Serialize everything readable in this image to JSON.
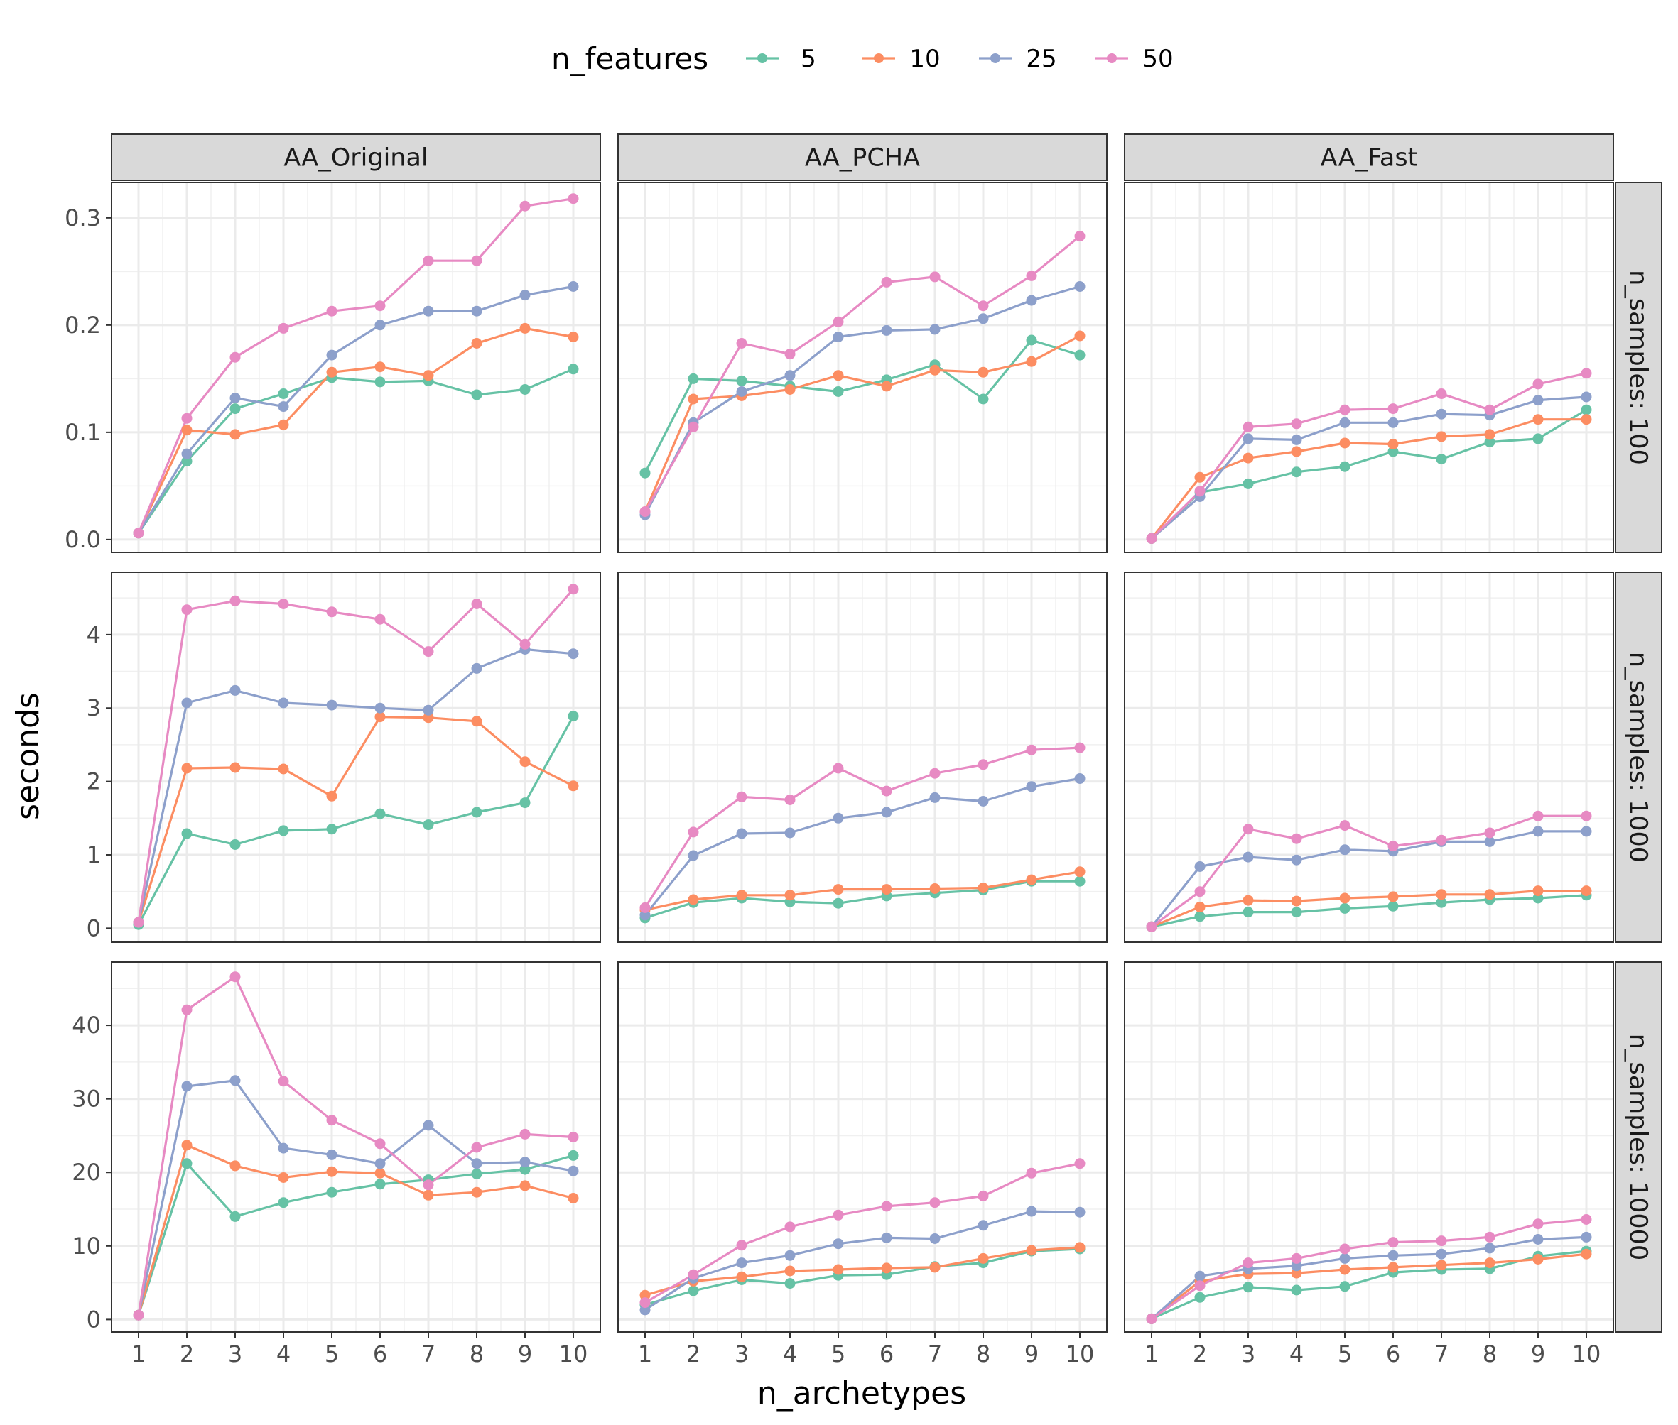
{
  "chart_data": {
    "type": "line",
    "layout": "facet_grid",
    "xlabel": "n_archetypes",
    "ylabel": "seconds",
    "x": [
      1,
      2,
      3,
      4,
      5,
      6,
      7,
      8,
      9,
      10
    ],
    "x_ticks": [
      "1",
      "2",
      "3",
      "4",
      "5",
      "6",
      "7",
      "8",
      "9",
      "10"
    ],
    "legend": {
      "title": "n_features",
      "position": "top",
      "entries": [
        {
          "name": "5",
          "color": "#66c2a5"
        },
        {
          "name": "10",
          "color": "#fc8d62"
        },
        {
          "name": "25",
          "color": "#8da0cb"
        },
        {
          "name": "50",
          "color": "#e78ac3"
        }
      ]
    },
    "columns": [
      "AA_Original",
      "AA_PCHA",
      "AA_Fast"
    ],
    "rows": [
      {
        "label": "n_samples: 100",
        "ylim": [
          -0.012,
          0.333
        ],
        "y_ticks": [
          0.0,
          0.1,
          0.2,
          0.3
        ],
        "y_tick_labels": [
          "0.0",
          "0.1",
          "0.2",
          "0.3"
        ],
        "panels": [
          {
            "series": [
              {
                "name": "5",
                "values": [
                  0.006,
                  0.073,
                  0.122,
                  0.136,
                  0.151,
                  0.147,
                  0.148,
                  0.135,
                  0.14,
                  0.159
                ]
              },
              {
                "name": "10",
                "values": [
                  0.006,
                  0.102,
                  0.098,
                  0.107,
                  0.156,
                  0.161,
                  0.153,
                  0.183,
                  0.197,
                  0.189
                ]
              },
              {
                "name": "25",
                "values": [
                  0.006,
                  0.08,
                  0.132,
                  0.124,
                  0.172,
                  0.2,
                  0.213,
                  0.213,
                  0.228,
                  0.236
                ]
              },
              {
                "name": "50",
                "values": [
                  0.006,
                  0.113,
                  0.17,
                  0.197,
                  0.213,
                  0.218,
                  0.26,
                  0.26,
                  0.311,
                  0.318
                ]
              }
            ]
          },
          {
            "series": [
              {
                "name": "5",
                "values": [
                  0.062,
                  0.15,
                  0.148,
                  0.143,
                  0.138,
                  0.149,
                  0.163,
                  0.131,
                  0.186,
                  0.172
                ]
              },
              {
                "name": "10",
                "values": [
                  0.026,
                  0.131,
                  0.134,
                  0.14,
                  0.153,
                  0.143,
                  0.158,
                  0.156,
                  0.166,
                  0.19
                ]
              },
              {
                "name": "25",
                "values": [
                  0.023,
                  0.109,
                  0.138,
                  0.153,
                  0.189,
                  0.195,
                  0.196,
                  0.206,
                  0.223,
                  0.236
                ]
              },
              {
                "name": "50",
                "values": [
                  0.026,
                  0.105,
                  0.183,
                  0.173,
                  0.203,
                  0.24,
                  0.245,
                  0.218,
                  0.246,
                  0.283
                ]
              }
            ]
          },
          {
            "series": [
              {
                "name": "5",
                "values": [
                  0.001,
                  0.044,
                  0.052,
                  0.063,
                  0.068,
                  0.082,
                  0.075,
                  0.091,
                  0.094,
                  0.121
                ]
              },
              {
                "name": "10",
                "values": [
                  0.001,
                  0.058,
                  0.076,
                  0.082,
                  0.09,
                  0.089,
                  0.096,
                  0.098,
                  0.112,
                  0.112
                ]
              },
              {
                "name": "25",
                "values": [
                  0.001,
                  0.04,
                  0.094,
                  0.093,
                  0.109,
                  0.109,
                  0.117,
                  0.116,
                  0.13,
                  0.133
                ]
              },
              {
                "name": "50",
                "values": [
                  0.001,
                  0.045,
                  0.105,
                  0.108,
                  0.121,
                  0.122,
                  0.136,
                  0.121,
                  0.145,
                  0.155
                ]
              }
            ]
          }
        ]
      },
      {
        "label": "n_samples: 1000",
        "ylim": [
          -0.19,
          4.85
        ],
        "y_ticks": [
          0,
          1,
          2,
          3,
          4
        ],
        "y_tick_labels": [
          "0",
          "1",
          "2",
          "3",
          "4"
        ],
        "panels": [
          {
            "series": [
              {
                "name": "5",
                "values": [
                  0.05,
                  1.29,
                  1.14,
                  1.33,
                  1.35,
                  1.56,
                  1.41,
                  1.58,
                  1.71,
                  2.89
                ]
              },
              {
                "name": "10",
                "values": [
                  0.08,
                  2.18,
                  2.19,
                  2.17,
                  1.8,
                  2.88,
                  2.87,
                  2.82,
                  2.27,
                  1.94
                ]
              },
              {
                "name": "25",
                "values": [
                  0.08,
                  3.07,
                  3.24,
                  3.07,
                  3.04,
                  3.0,
                  2.97,
                  3.54,
                  3.8,
                  3.74
                ]
              },
              {
                "name": "50",
                "values": [
                  0.08,
                  4.34,
                  4.46,
                  4.42,
                  4.31,
                  4.21,
                  3.77,
                  4.42,
                  3.87,
                  4.62
                ]
              }
            ]
          },
          {
            "series": [
              {
                "name": "5",
                "values": [
                  0.14,
                  0.35,
                  0.41,
                  0.36,
                  0.34,
                  0.44,
                  0.48,
                  0.52,
                  0.64,
                  0.64
                ]
              },
              {
                "name": "10",
                "values": [
                  0.25,
                  0.39,
                  0.45,
                  0.45,
                  0.53,
                  0.53,
                  0.54,
                  0.55,
                  0.66,
                  0.77
                ]
              },
              {
                "name": "25",
                "values": [
                  0.18,
                  0.99,
                  1.29,
                  1.3,
                  1.5,
                  1.58,
                  1.78,
                  1.73,
                  1.93,
                  2.04
                ]
              },
              {
                "name": "50",
                "values": [
                  0.28,
                  1.31,
                  1.79,
                  1.75,
                  2.18,
                  1.87,
                  2.11,
                  2.23,
                  2.43,
                  2.46
                ]
              }
            ]
          },
          {
            "series": [
              {
                "name": "5",
                "values": [
                  0.02,
                  0.16,
                  0.22,
                  0.22,
                  0.27,
                  0.3,
                  0.35,
                  0.39,
                  0.41,
                  0.45
                ]
              },
              {
                "name": "10",
                "values": [
                  0.02,
                  0.29,
                  0.38,
                  0.37,
                  0.41,
                  0.43,
                  0.46,
                  0.46,
                  0.51,
                  0.51
                ]
              },
              {
                "name": "25",
                "values": [
                  0.02,
                  0.84,
                  0.97,
                  0.93,
                  1.07,
                  1.05,
                  1.18,
                  1.18,
                  1.32,
                  1.32
                ]
              },
              {
                "name": "50",
                "values": [
                  0.02,
                  0.5,
                  1.35,
                  1.22,
                  1.4,
                  1.12,
                  1.2,
                  1.3,
                  1.53,
                  1.53
                ]
              }
            ]
          }
        ]
      },
      {
        "label": "n_samples: 10000",
        "ylim": [
          -1.7,
          48.6
        ],
        "y_ticks": [
          0,
          10,
          20,
          30,
          40
        ],
        "y_tick_labels": [
          "0",
          "10",
          "20",
          "30",
          "40"
        ],
        "panels": [
          {
            "series": [
              {
                "name": "5",
                "values": [
                  0.6,
                  21.2,
                  14.0,
                  15.9,
                  17.3,
                  18.4,
                  19.0,
                  19.8,
                  20.4,
                  22.3
                ]
              },
              {
                "name": "10",
                "values": [
                  0.6,
                  23.7,
                  20.9,
                  19.3,
                  20.1,
                  19.9,
                  16.9,
                  17.3,
                  18.2,
                  16.5
                ]
              },
              {
                "name": "25",
                "values": [
                  0.6,
                  31.7,
                  32.5,
                  23.3,
                  22.4,
                  21.2,
                  26.4,
                  21.2,
                  21.4,
                  20.2
                ]
              },
              {
                "name": "50",
                "values": [
                  0.6,
                  42.1,
                  46.6,
                  32.4,
                  27.1,
                  23.9,
                  18.3,
                  23.4,
                  25.2,
                  24.8
                ]
              }
            ]
          },
          {
            "series": [
              {
                "name": "5",
                "values": [
                  2.0,
                  3.9,
                  5.4,
                  4.9,
                  6.0,
                  6.1,
                  7.2,
                  7.7,
                  9.3,
                  9.6
                ]
              },
              {
                "name": "10",
                "values": [
                  3.3,
                  5.2,
                  5.8,
                  6.6,
                  6.8,
                  7.0,
                  7.1,
                  8.3,
                  9.4,
                  9.8
                ]
              },
              {
                "name": "25",
                "values": [
                  1.3,
                  5.6,
                  7.7,
                  8.7,
                  10.3,
                  11.1,
                  11.0,
                  12.8,
                  14.7,
                  14.6
                ]
              },
              {
                "name": "50",
                "values": [
                  2.3,
                  6.1,
                  10.1,
                  12.6,
                  14.2,
                  15.4,
                  15.9,
                  16.8,
                  19.9,
                  21.2
                ]
              }
            ]
          },
          {
            "series": [
              {
                "name": "5",
                "values": [
                  0.1,
                  3.0,
                  4.4,
                  4.0,
                  4.5,
                  6.4,
                  6.8,
                  6.9,
                  8.6,
                  9.3
                ]
              },
              {
                "name": "10",
                "values": [
                  0.1,
                  5.2,
                  6.2,
                  6.3,
                  6.8,
                  7.1,
                  7.4,
                  7.7,
                  8.2,
                  8.9
                ]
              },
              {
                "name": "25",
                "values": [
                  0.1,
                  5.9,
                  6.9,
                  7.3,
                  8.3,
                  8.7,
                  8.9,
                  9.7,
                  10.9,
                  11.2
                ]
              },
              {
                "name": "50",
                "values": [
                  0.1,
                  4.6,
                  7.7,
                  8.3,
                  9.6,
                  10.5,
                  10.7,
                  11.2,
                  13.0,
                  13.6
                ]
              }
            ]
          }
        ]
      }
    ]
  }
}
